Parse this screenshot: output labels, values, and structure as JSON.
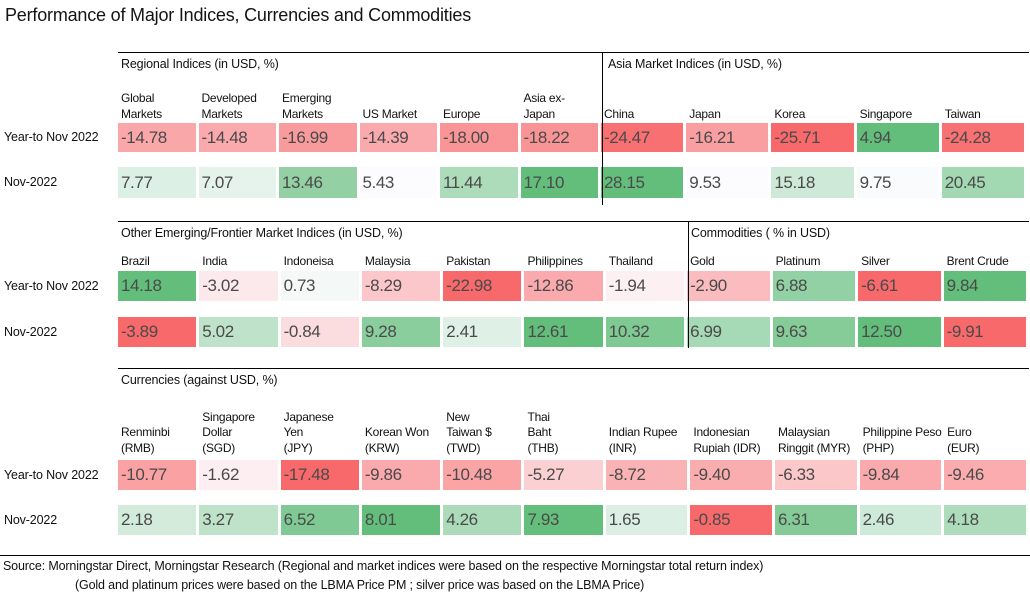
{
  "title": "Performance of Major Indices, Currencies and Commodities",
  "row_labels": [
    "Year-to Nov 2022",
    "Nov-2022"
  ],
  "palette": {
    "negative_extreme": "#F8696B",
    "neutral": "#FCFCFF",
    "positive_extreme": "#63BE7B",
    "divider": "#000000",
    "cell_text": "#4A4A4A",
    "header_text": "#111111"
  },
  "sections": [
    {
      "id": "regional-asia",
      "groups": [
        {
          "label": "Regional Indices (in USD, %)",
          "headers": [
            "Global\nMarkets",
            "Developed\nMarkets",
            "Emerging\nMarkets",
            "US Market",
            "Europe",
            "Asia ex-\nJapan"
          ]
        },
        {
          "label": "Asia Market Indices (in USD, %)",
          "headers": [
            "China",
            "Japan",
            "Korea",
            "Singapore",
            "Taiwan"
          ]
        }
      ],
      "rows": [
        {
          "label": "Year-to Nov 2022",
          "cells": [
            {
              "v": -14.78,
              "bg": "#FAA7AA"
            },
            {
              "v": -14.48,
              "bg": "#FAA9AC"
            },
            {
              "v": -16.99,
              "bg": "#F99B9D"
            },
            {
              "v": -14.39,
              "bg": "#FAAAAC"
            },
            {
              "v": -18.0,
              "bg": "#F99597"
            },
            {
              "v": -18.22,
              "bg": "#F99496"
            },
            {
              "v": -24.47,
              "bg": "#F87072"
            },
            {
              "v": -16.21,
              "bg": "#F99FA2"
            },
            {
              "v": -25.71,
              "bg": "#F8696B"
            },
            {
              "v": 4.94,
              "bg": "#63BE7B"
            },
            {
              "v": -24.28,
              "bg": "#F87173"
            }
          ]
        },
        {
          "label": "Nov-2022",
          "cells": [
            {
              "v": 7.77,
              "bg": "#DDF0E5"
            },
            {
              "v": 7.07,
              "bg": "#E6F3ED"
            },
            {
              "v": 13.46,
              "bg": "#93D1A4"
            },
            {
              "v": 5.43,
              "bg": "#FCFCFF"
            },
            {
              "v": 11.44,
              "bg": "#ADDCBB"
            },
            {
              "v": 17.1,
              "bg": "#63BE7B"
            },
            {
              "v": 28.15,
              "bg": "#63BE7B"
            },
            {
              "v": 9.53,
              "bg": "#FCFCFF"
            },
            {
              "v": 15.18,
              "bg": "#CEE9D7"
            },
            {
              "v": 9.75,
              "bg": "#FAFBFD"
            },
            {
              "v": 20.45,
              "bg": "#A2D8B2"
            }
          ]
        }
      ]
    },
    {
      "id": "em-commodities",
      "groups": [
        {
          "label": "Other Emerging/Frontier Market Indices (in USD, %)",
          "headers": [
            "Brazil",
            "India",
            "Indoneisa",
            "Malaysia",
            "Pakistan",
            "Philippines",
            "Thailand"
          ]
        },
        {
          "label": "Commodities ( % in USD)",
          "headers": [
            "Gold",
            "Platinum",
            "Silver",
            "Brent Crude"
          ]
        }
      ],
      "rows": [
        {
          "label": "Year-to Nov 2022",
          "cells": [
            {
              "v": 14.18,
              "bg": "#63BE7B"
            },
            {
              "v": -3.02,
              "bg": "#FBE9EC"
            },
            {
              "v": 0.73,
              "bg": "#F4F9F8"
            },
            {
              "v": -8.29,
              "bg": "#FBC7CA"
            },
            {
              "v": -22.98,
              "bg": "#F8696B"
            },
            {
              "v": -12.86,
              "bg": "#FAAAAC"
            },
            {
              "v": -1.94,
              "bg": "#FCF0F2"
            },
            {
              "v": -2.9,
              "bg": "#FABCBE"
            },
            {
              "v": 6.88,
              "bg": "#91D1A3"
            },
            {
              "v": -6.61,
              "bg": "#F8696B"
            },
            {
              "v": 9.84,
              "bg": "#63BE7B"
            }
          ]
        },
        {
          "label": "Nov-2022",
          "cells": [
            {
              "v": -3.89,
              "bg": "#F8696B"
            },
            {
              "v": 5.02,
              "bg": "#BFE3CA"
            },
            {
              "v": -0.84,
              "bg": "#FBDCDF"
            },
            {
              "v": 9.28,
              "bg": "#8BCE9E"
            },
            {
              "v": 2.41,
              "bg": "#DFF0E6"
            },
            {
              "v": 12.61,
              "bg": "#63BE7B"
            },
            {
              "v": 10.32,
              "bg": "#7FC993"
            },
            {
              "v": 6.99,
              "bg": "#A6D9B5"
            },
            {
              "v": 9.63,
              "bg": "#86CC99"
            },
            {
              "v": 12.5,
              "bg": "#63BE7B"
            },
            {
              "v": -9.91,
              "bg": "#F8696B"
            }
          ]
        }
      ]
    },
    {
      "id": "currencies",
      "groups": [
        {
          "label": "Currencies (against USD, %)",
          "headers": [
            "Renminbi\n(RMB)",
            "Singapore\nDollar\n(SGD)",
            "Japanese\nYen\n(JPY)",
            "Korean Won\n(KRW)",
            "New\nTaiwan $\n(TWD)",
            "Thai\nBaht\n(THB)",
            "Indian Rupee\n(INR)",
            "Indonesian\nRupiah (IDR)",
            "Malaysian\nRinggit (MYR)",
            "Philippine Peso\n(PHP)",
            "Euro\n(EUR)"
          ]
        }
      ],
      "rows": [
        {
          "label": "Year-to Nov 2022",
          "cells": [
            {
              "v": -10.77,
              "bg": "#FAA1A4"
            },
            {
              "v": -1.62,
              "bg": "#FCEEF1"
            },
            {
              "v": -17.48,
              "bg": "#F8696B"
            },
            {
              "v": -9.86,
              "bg": "#FAA9AC"
            },
            {
              "v": -10.48,
              "bg": "#FAA4A6"
            },
            {
              "v": -5.27,
              "bg": "#FBD0D2"
            },
            {
              "v": -8.72,
              "bg": "#FAB3B5"
            },
            {
              "v": -9.4,
              "bg": "#FAADAF"
            },
            {
              "v": -6.33,
              "bg": "#FBC7C9"
            },
            {
              "v": -9.84,
              "bg": "#FAA9AC"
            },
            {
              "v": -9.46,
              "bg": "#FAACAF"
            }
          ]
        },
        {
          "label": "Nov-2022",
          "cells": [
            {
              "v": 2.18,
              "bg": "#D2EBDB"
            },
            {
              "v": 3.27,
              "bg": "#BEE3C9"
            },
            {
              "v": 6.52,
              "bg": "#7FCA94"
            },
            {
              "v": 8.01,
              "bg": "#63BE7B"
            },
            {
              "v": 4.26,
              "bg": "#ABDBB9"
            },
            {
              "v": 7.93,
              "bg": "#64BF7C"
            },
            {
              "v": 1.65,
              "bg": "#DCEFE4"
            },
            {
              "v": -0.85,
              "bg": "#F8696B"
            },
            {
              "v": 6.31,
              "bg": "#84CB97"
            },
            {
              "v": 2.46,
              "bg": "#CDE9D7"
            },
            {
              "v": 4.18,
              "bg": "#ACDCBA"
            }
          ]
        }
      ]
    }
  ],
  "footer": {
    "line1": "Source: Morningstar Direct, Morningstar Research (Regional and market indices were based on the respective Morningstar total return index)",
    "line2": "(Gold and platinum prices were based on the LBMA Price PM ; silver price was based on the LBMA Price)"
  },
  "chart_data": {
    "type": "heatmap",
    "title": "Performance of Major Indices, Currencies and Commodities",
    "rows": [
      "Year-to Nov 2022",
      "Nov-2022"
    ],
    "colorscale": {
      "min": "#F8696B",
      "mid": "#FCFCFF",
      "max": "#63BE7B"
    },
    "legend": "off",
    "groups": [
      {
        "name": "Regional Indices (in USD, %)",
        "columns": [
          "Global Markets",
          "Developed Markets",
          "Emerging Markets",
          "US Market",
          "Europe",
          "Asia ex-Japan"
        ],
        "values": [
          [
            -14.78,
            -14.48,
            -16.99,
            -14.39,
            -18.0,
            -18.22
          ],
          [
            7.77,
            7.07,
            13.46,
            5.43,
            11.44,
            17.1
          ]
        ]
      },
      {
        "name": "Asia Market Indices (in USD, %)",
        "columns": [
          "China",
          "Japan",
          "Korea",
          "Singapore",
          "Taiwan"
        ],
        "values": [
          [
            -24.47,
            -16.21,
            -25.71,
            4.94,
            -24.28
          ],
          [
            28.15,
            9.53,
            15.18,
            9.75,
            20.45
          ]
        ]
      },
      {
        "name": "Other Emerging/Frontier Market Indices (in USD, %)",
        "columns": [
          "Brazil",
          "India",
          "Indoneisa",
          "Malaysia",
          "Pakistan",
          "Philippines",
          "Thailand"
        ],
        "values": [
          [
            14.18,
            -3.02,
            0.73,
            -8.29,
            -22.98,
            -12.86,
            -1.94
          ],
          [
            -3.89,
            5.02,
            -0.84,
            9.28,
            2.41,
            12.61,
            10.32
          ]
        ]
      },
      {
        "name": "Commodities ( % in USD)",
        "columns": [
          "Gold",
          "Platinum",
          "Silver",
          "Brent Crude"
        ],
        "values": [
          [
            -2.9,
            6.88,
            -6.61,
            9.84
          ],
          [
            6.99,
            9.63,
            12.5,
            -9.91
          ]
        ]
      },
      {
        "name": "Currencies (against USD, %)",
        "columns": [
          "Renminbi (RMB)",
          "Singapore Dollar (SGD)",
          "Japanese Yen (JPY)",
          "Korean Won (KRW)",
          "New Taiwan $ (TWD)",
          "Thai Baht (THB)",
          "Indian Rupee (INR)",
          "Indonesian Rupiah (IDR)",
          "Malaysian Ringgit (MYR)",
          "Philippine Peso (PHP)",
          "Euro (EUR)"
        ],
        "values": [
          [
            -10.77,
            -1.62,
            -17.48,
            -9.86,
            -10.48,
            -5.27,
            -8.72,
            -9.4,
            -6.33,
            -9.84,
            -9.46
          ],
          [
            2.18,
            3.27,
            6.52,
            8.01,
            4.26,
            7.93,
            1.65,
            -0.85,
            6.31,
            2.46,
            4.18
          ]
        ]
      }
    ]
  }
}
